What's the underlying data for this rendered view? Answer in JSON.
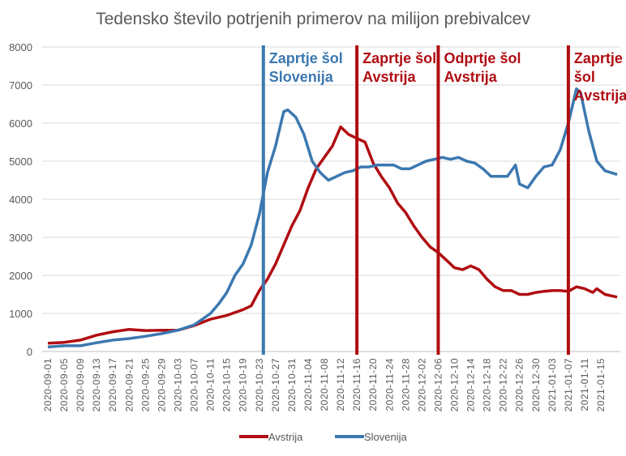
{
  "chart_data": {
    "type": "line",
    "title": "Tedensko število potrjenih primerov na milijon prebivalcev",
    "xlabel": "",
    "ylabel": "",
    "ylim": [
      0,
      8000
    ],
    "yticks": [
      0,
      1000,
      2000,
      3000,
      4000,
      5000,
      6000,
      7000,
      8000
    ],
    "grid": true,
    "legend_position": "bottom",
    "x_start": "2020-09-01",
    "x_end": "2021-01-19",
    "xtick_labels": [
      "2020-09-01",
      "2020-09-05",
      "2020-09-09",
      "2020-09-13",
      "2020-09-17",
      "2020-09-21",
      "2020-09-25",
      "2020-09-29",
      "2020-10-03",
      "2020-10-07",
      "2020-10-11",
      "2020-10-15",
      "2020-10-19",
      "2020-10-23",
      "2020-10-27",
      "2020-10-31",
      "2020-11-04",
      "2020-11-08",
      "2020-11-12",
      "2020-11-16",
      "2020-11-20",
      "2020-11-24",
      "2020-11-28",
      "2020-12-02",
      "2020-12-06",
      "2020-12-10",
      "2020-12-14",
      "2020-12-18",
      "2020-12-22",
      "2020-12-26",
      "2020-12-30",
      "2021-01-03",
      "2021-01-07",
      "2021-01-11",
      "2021-01-15"
    ],
    "series": [
      {
        "name": "Avstrija",
        "color": "#B00D12",
        "points": [
          [
            "2020-09-01",
            220
          ],
          [
            "2020-09-05",
            240
          ],
          [
            "2020-09-09",
            300
          ],
          [
            "2020-09-13",
            430
          ],
          [
            "2020-09-17",
            520
          ],
          [
            "2020-09-21",
            580
          ],
          [
            "2020-09-25",
            550
          ],
          [
            "2020-09-29",
            560
          ],
          [
            "2020-10-03",
            560
          ],
          [
            "2020-10-07",
            680
          ],
          [
            "2020-10-11",
            850
          ],
          [
            "2020-10-15",
            950
          ],
          [
            "2020-10-19",
            1100
          ],
          [
            "2020-10-21",
            1200
          ],
          [
            "2020-10-23",
            1600
          ],
          [
            "2020-10-25",
            1900
          ],
          [
            "2020-10-27",
            2300
          ],
          [
            "2020-10-29",
            2800
          ],
          [
            "2020-10-31",
            3300
          ],
          [
            "2020-11-02",
            3700
          ],
          [
            "2020-11-04",
            4300
          ],
          [
            "2020-11-06",
            4800
          ],
          [
            "2020-11-08",
            5100
          ],
          [
            "2020-11-10",
            5400
          ],
          [
            "2020-11-12",
            5900
          ],
          [
            "2020-11-14",
            5700
          ],
          [
            "2020-11-16",
            5600
          ],
          [
            "2020-11-18",
            5500
          ],
          [
            "2020-11-20",
            4950
          ],
          [
            "2020-11-22",
            4600
          ],
          [
            "2020-11-24",
            4300
          ],
          [
            "2020-11-26",
            3900
          ],
          [
            "2020-11-28",
            3650
          ],
          [
            "2020-11-30",
            3300
          ],
          [
            "2020-12-02",
            3000
          ],
          [
            "2020-12-04",
            2750
          ],
          [
            "2020-12-06",
            2600
          ],
          [
            "2020-12-08",
            2400
          ],
          [
            "2020-12-10",
            2200
          ],
          [
            "2020-12-12",
            2150
          ],
          [
            "2020-12-14",
            2250
          ],
          [
            "2020-12-16",
            2150
          ],
          [
            "2020-12-18",
            1900
          ],
          [
            "2020-12-20",
            1700
          ],
          [
            "2020-12-22",
            1600
          ],
          [
            "2020-12-24",
            1600
          ],
          [
            "2020-12-26",
            1500
          ],
          [
            "2020-12-28",
            1500
          ],
          [
            "2020-12-30",
            1550
          ],
          [
            "2021-01-01",
            1580
          ],
          [
            "2021-01-03",
            1600
          ],
          [
            "2021-01-05",
            1600
          ],
          [
            "2021-01-07",
            1580
          ],
          [
            "2021-01-09",
            1700
          ],
          [
            "2021-01-11",
            1650
          ],
          [
            "2021-01-13",
            1550
          ],
          [
            "2021-01-14",
            1650
          ],
          [
            "2021-01-16",
            1500
          ],
          [
            "2021-01-19",
            1430
          ]
        ]
      },
      {
        "name": "Slovenija",
        "color": "#3C78B0",
        "points": [
          [
            "2020-09-01",
            120
          ],
          [
            "2020-09-05",
            150
          ],
          [
            "2020-09-09",
            150
          ],
          [
            "2020-09-13",
            230
          ],
          [
            "2020-09-17",
            300
          ],
          [
            "2020-09-21",
            340
          ],
          [
            "2020-09-25",
            400
          ],
          [
            "2020-09-29",
            470
          ],
          [
            "2020-10-03",
            560
          ],
          [
            "2020-10-07",
            700
          ],
          [
            "2020-10-11",
            1000
          ],
          [
            "2020-10-13",
            1250
          ],
          [
            "2020-10-15",
            1550
          ],
          [
            "2020-10-17",
            2000
          ],
          [
            "2020-10-19",
            2300
          ],
          [
            "2020-10-21",
            2800
          ],
          [
            "2020-10-23",
            3600
          ],
          [
            "2020-10-25",
            4700
          ],
          [
            "2020-10-27",
            5400
          ],
          [
            "2020-10-29",
            6300
          ],
          [
            "2020-10-30",
            6350
          ],
          [
            "2020-11-01",
            6150
          ],
          [
            "2020-11-03",
            5700
          ],
          [
            "2020-11-05",
            5000
          ],
          [
            "2020-11-07",
            4700
          ],
          [
            "2020-11-09",
            4500
          ],
          [
            "2020-11-11",
            4600
          ],
          [
            "2020-11-13",
            4700
          ],
          [
            "2020-11-15",
            4750
          ],
          [
            "2020-11-17",
            4850
          ],
          [
            "2020-11-19",
            4850
          ],
          [
            "2020-11-21",
            4900
          ],
          [
            "2020-11-23",
            4900
          ],
          [
            "2020-11-25",
            4900
          ],
          [
            "2020-11-27",
            4800
          ],
          [
            "2020-11-29",
            4800
          ],
          [
            "2020-12-01",
            4900
          ],
          [
            "2020-12-03",
            5000
          ],
          [
            "2020-12-05",
            5050
          ],
          [
            "2020-12-07",
            5100
          ],
          [
            "2020-12-09",
            5050
          ],
          [
            "2020-12-11",
            5100
          ],
          [
            "2020-12-13",
            5000
          ],
          [
            "2020-12-15",
            4950
          ],
          [
            "2020-12-17",
            4800
          ],
          [
            "2020-12-19",
            4600
          ],
          [
            "2020-12-21",
            4600
          ],
          [
            "2020-12-23",
            4600
          ],
          [
            "2020-12-25",
            4900
          ],
          [
            "2020-12-26",
            4400
          ],
          [
            "2020-12-28",
            4300
          ],
          [
            "2020-12-30",
            4600
          ],
          [
            "2021-01-01",
            4850
          ],
          [
            "2021-01-03",
            4900
          ],
          [
            "2021-01-05",
            5300
          ],
          [
            "2021-01-07",
            6000
          ],
          [
            "2021-01-09",
            6900
          ],
          [
            "2021-01-10",
            6800
          ],
          [
            "2021-01-12",
            5800
          ],
          [
            "2021-01-14",
            5000
          ],
          [
            "2021-01-16",
            4750
          ],
          [
            "2021-01-19",
            4650
          ]
        ]
      }
    ],
    "annotations": [
      {
        "date": "2020-10-24",
        "color": "#3C78B0",
        "lines": [
          "Zaprtje šol",
          "Slovenija"
        ]
      },
      {
        "date": "2020-11-16",
        "color": "#B00D12",
        "lines": [
          "Zaprtje šol",
          "Avstrija"
        ]
      },
      {
        "date": "2020-12-06",
        "color": "#B00D12",
        "lines": [
          "Odprtje šol",
          "Avstrija"
        ]
      },
      {
        "date": "2021-01-07",
        "color": "#B00D12",
        "lines": [
          "Zaprtje",
          "šol",
          "Avstrija"
        ]
      }
    ]
  }
}
